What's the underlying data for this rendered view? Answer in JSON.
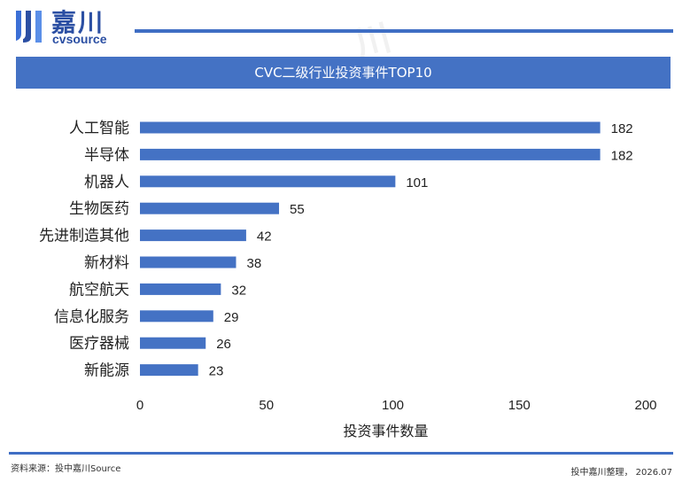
{
  "logo": {
    "cn": "嘉川",
    "en": "cvsource"
  },
  "chart_data": {
    "type": "bar",
    "orientation": "horizontal",
    "title": "CVC二级行业投资事件TOP10",
    "xlabel": "投资事件数量",
    "ylabel": "",
    "xlim": [
      0,
      200
    ],
    "xticks": [
      0,
      50,
      100,
      150,
      200
    ],
    "categories": [
      "人工智能",
      "半导体",
      "机器人",
      "生物医药",
      "先进制造其他",
      "新材料",
      "航空航天",
      "信息化服务",
      "医疗器械",
      "新能源"
    ],
    "values": [
      182,
      182,
      101,
      55,
      42,
      38,
      32,
      29,
      26,
      23
    ],
    "bar_color": "#4472c4",
    "grid": false,
    "legend": "none"
  },
  "footer": {
    "source": "资料来源：投中嘉川Source",
    "credit": "投中嘉川整理，  2026.07"
  }
}
